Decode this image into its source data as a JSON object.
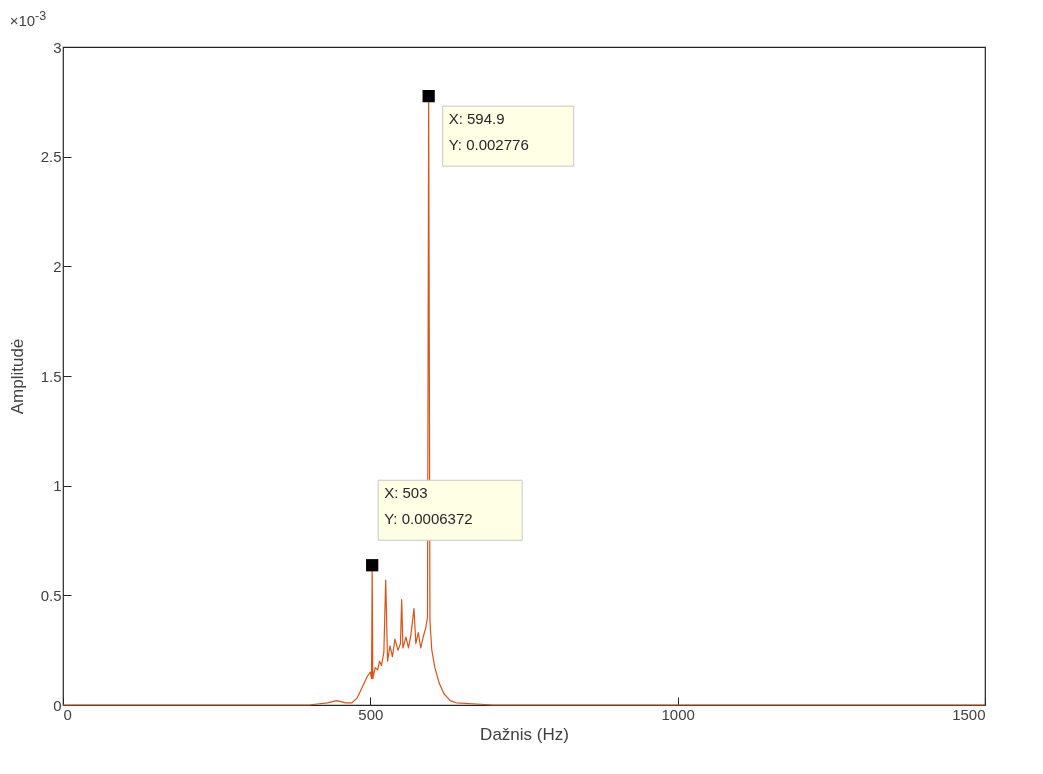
{
  "chart_data": {
    "type": "line",
    "xlabel": "Dažnis (Hz)",
    "ylabel": "Amplitudė",
    "xlim": [
      0,
      1500
    ],
    "xticks": [
      0,
      500,
      1000,
      1500
    ],
    "ylim": [
      0,
      3
    ],
    "yticks": [
      0,
      0.5,
      1,
      1.5,
      2,
      2.5,
      3
    ],
    "grid": false,
    "marker": "none",
    "line_style": "solid",
    "series": [
      {
        "color": "#d95319",
        "x": [
          0,
          400,
          430,
          445,
          460,
          470,
          478,
          485,
          490,
          495,
          500,
          502,
          503,
          504,
          508,
          512,
          515,
          518,
          522,
          525,
          528,
          532,
          536,
          540,
          545,
          549,
          551,
          553,
          558,
          562,
          566,
          571,
          574,
          578,
          582,
          586,
          590,
          593,
          594.9,
          597,
          600,
          605,
          612,
          620,
          630,
          640,
          700,
          1500
        ],
        "values": [
          0,
          0,
          0.01,
          0.02,
          0.01,
          0.01,
          0.03,
          0.07,
          0.1,
          0.13,
          0.15,
          0.12,
          0.6372,
          0.12,
          0.17,
          0.16,
          0.2,
          0.18,
          0.24,
          0.57,
          0.2,
          0.27,
          0.22,
          0.3,
          0.25,
          0.28,
          0.48,
          0.26,
          0.31,
          0.26,
          0.32,
          0.44,
          0.28,
          0.33,
          0.26,
          0.31,
          0.35,
          0.4,
          2.776,
          0.38,
          0.25,
          0.17,
          0.1,
          0.05,
          0.02,
          0.01,
          0,
          0
        ]
      }
    ],
    "annotations": [
      "×10$^{-3}$",
      {
        "text": "X: 594.9\nY: 0.002776",
        "x": 594.9,
        "y": 2.776
      },
      {
        "text": "X: 503\nY: 0.0006372",
        "x": 503,
        "y": 0.6372
      }
    ]
  }
}
